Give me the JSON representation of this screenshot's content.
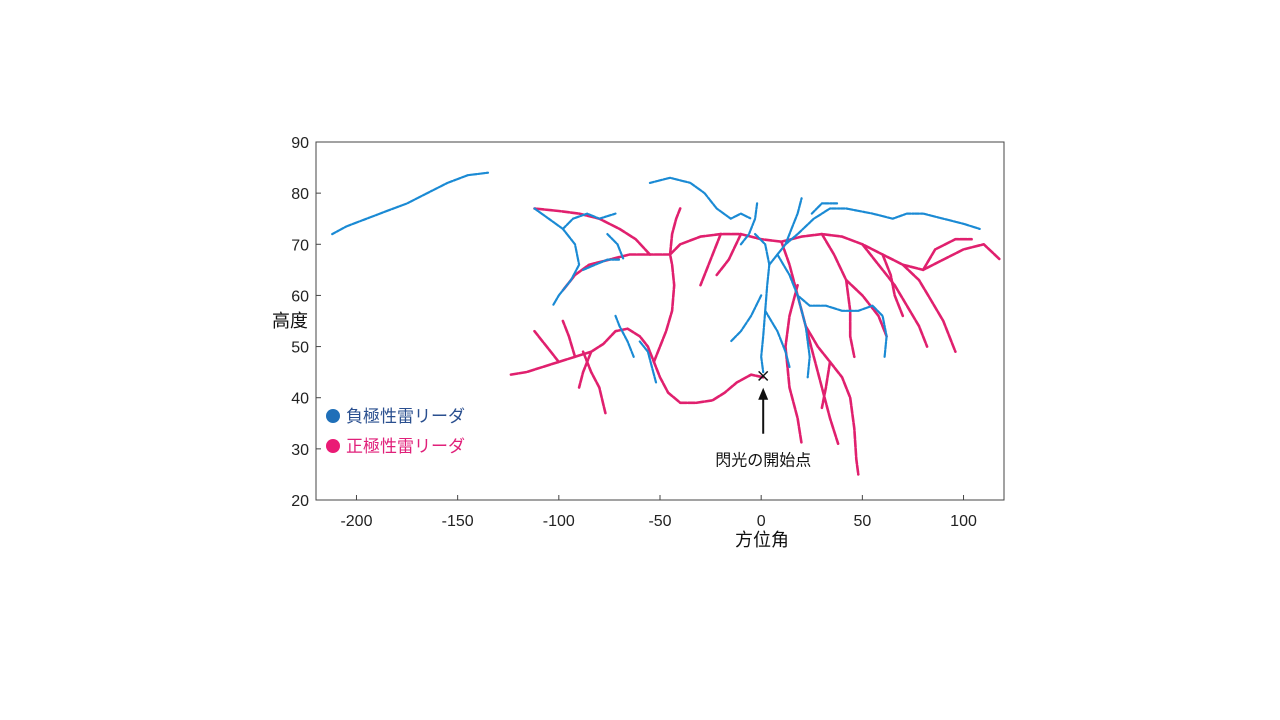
{
  "chart_data": {
    "type": "scatter",
    "xlabel": "方位角",
    "ylabel": "高度",
    "xlim": [
      -220,
      120
    ],
    "ylim": [
      20,
      90
    ],
    "xticks": [
      "-200",
      "-150",
      "-100",
      "-50",
      "0",
      "50",
      "100"
    ],
    "yticks": [
      "90",
      "80",
      "70",
      "60",
      "50",
      "40",
      "30",
      "20"
    ],
    "grid": false,
    "legend_position": "bottom-left",
    "series": [
      {
        "name": "負極性雷リーダ",
        "color": "#1a8ad4",
        "marker_color": "#1f6fb8",
        "label_color": "#2a4f8f",
        "paths": [
          [
            [
              -212,
              72
            ],
            [
              -205,
              73.5
            ],
            [
              -195,
              75
            ],
            [
              -185,
              76.5
            ],
            [
              -175,
              78
            ],
            [
              -165,
              80
            ],
            [
              -155,
              82
            ],
            [
              -145,
              83.5
            ],
            [
              -135,
              84
            ]
          ],
          [
            [
              -112,
              77
            ],
            [
              -105,
              75
            ],
            [
              -98,
              73
            ],
            [
              -92,
              70
            ],
            [
              -90,
              66
            ],
            [
              -94,
              63
            ],
            [
              -100,
              60
            ],
            [
              -103,
              58
            ]
          ],
          [
            [
              -98,
              73
            ],
            [
              -93,
              75
            ],
            [
              -86,
              76
            ],
            [
              -80,
              75
            ],
            [
              -72,
              76
            ]
          ],
          [
            [
              -88,
              65
            ],
            [
              -82,
              66
            ],
            [
              -76,
              67
            ],
            [
              -70,
              67
            ]
          ],
          [
            [
              -76,
              72
            ],
            [
              -71,
              70
            ],
            [
              -68,
              67
            ]
          ],
          [
            [
              -55,
              82
            ],
            [
              -45,
              83
            ],
            [
              -35,
              82
            ],
            [
              -28,
              80
            ],
            [
              -22,
              77
            ],
            [
              -15,
              75
            ],
            [
              -10,
              76
            ],
            [
              -5,
              75
            ]
          ],
          [
            [
              -10,
              70
            ],
            [
              -6,
              72
            ],
            [
              -3,
              75
            ],
            [
              -2,
              78
            ]
          ],
          [
            [
              -3,
              72
            ],
            [
              2,
              70
            ],
            [
              4,
              66
            ],
            [
              3,
              62
            ],
            [
              2,
              57
            ],
            [
              1,
              52
            ],
            [
              0,
              48
            ],
            [
              1,
              45
            ]
          ],
          [
            [
              4,
              66
            ],
            [
              8,
              68
            ],
            [
              12,
              70
            ],
            [
              15,
              73
            ],
            [
              18,
              76
            ],
            [
              20,
              79
            ]
          ],
          [
            [
              12,
              70
            ],
            [
              18,
              72
            ],
            [
              26,
              75
            ],
            [
              34,
              77
            ],
            [
              42,
              77
            ],
            [
              55,
              76
            ],
            [
              65,
              75
            ],
            [
              72,
              76
            ],
            [
              80,
              76
            ],
            [
              90,
              75
            ],
            [
              100,
              74
            ],
            [
              108,
              73
            ]
          ],
          [
            [
              8,
              68
            ],
            [
              14,
              64
            ],
            [
              18,
              60
            ],
            [
              24,
              58
            ],
            [
              32,
              58
            ],
            [
              40,
              57
            ],
            [
              48,
              57
            ],
            [
              55,
              58
            ],
            [
              60,
              56
            ],
            [
              62,
              52
            ],
            [
              61,
              48
            ]
          ],
          [
            [
              18,
              60
            ],
            [
              22,
              54
            ],
            [
              24,
              48
            ],
            [
              23,
              44
            ]
          ],
          [
            [
              0,
              60
            ],
            [
              -5,
              56
            ],
            [
              -10,
              53
            ],
            [
              -15,
              51
            ]
          ],
          [
            [
              2,
              57
            ],
            [
              8,
              53
            ],
            [
              12,
              49
            ],
            [
              14,
              46
            ]
          ],
          [
            [
              -60,
              51
            ],
            [
              -56,
              49
            ],
            [
              -54,
              46
            ],
            [
              -52,
              43
            ]
          ],
          [
            [
              -72,
              56
            ],
            [
              -70,
              54
            ],
            [
              -66,
              51
            ],
            [
              -63,
              48
            ]
          ],
          [
            [
              25,
              76
            ],
            [
              30,
              78
            ],
            [
              38,
              78
            ]
          ]
        ]
      },
      {
        "name": "正極性雷リーダ",
        "color": "#e0206e",
        "marker_color": "#ea1a75",
        "label_color": "#e0207a",
        "paths": [
          [
            [
              1,
              44
            ],
            [
              -5,
              44.5
            ],
            [
              -12,
              43
            ],
            [
              -18,
              41
            ],
            [
              -24,
              39.5
            ],
            [
              -32,
              39
            ],
            [
              -40,
              39
            ],
            [
              -46,
              41
            ],
            [
              -50,
              44
            ],
            [
              -53,
              47
            ],
            [
              -56,
              50
            ],
            [
              -60,
              52
            ],
            [
              -66,
              53.5
            ],
            [
              -72,
              53
            ],
            [
              -78,
              50.5
            ],
            [
              -84,
              49
            ],
            [
              -92,
              48
            ],
            [
              -100,
              47
            ],
            [
              -108,
              46
            ],
            [
              -116,
              45
            ],
            [
              -124,
              44.5
            ]
          ],
          [
            [
              -53,
              47
            ],
            [
              -47,
              53
            ],
            [
              -44,
              57
            ],
            [
              -43,
              62
            ],
            [
              -44,
              66
            ],
            [
              -45,
              68
            ],
            [
              -40,
              70
            ],
            [
              -30,
              71.5
            ],
            [
              -20,
              72
            ],
            [
              -10,
              72
            ],
            [
              0,
              71
            ],
            [
              10,
              70.5
            ],
            [
              20,
              71.5
            ],
            [
              30,
              72
            ],
            [
              40,
              71.5
            ],
            [
              50,
              70
            ],
            [
              60,
              68
            ],
            [
              70,
              66
            ],
            [
              80,
              65
            ],
            [
              90,
              67
            ],
            [
              100,
              69
            ],
            [
              110,
              70
            ],
            [
              118,
              67
            ]
          ],
          [
            [
              -45,
              68
            ],
            [
              -55,
              68
            ],
            [
              -65,
              68
            ],
            [
              -75,
              67
            ],
            [
              -85,
              66
            ],
            [
              -92,
              64
            ],
            [
              -98,
              61
            ]
          ],
          [
            [
              -45,
              68
            ],
            [
              -44,
              72
            ],
            [
              -42,
              75
            ],
            [
              -40,
              77
            ]
          ],
          [
            [
              -55,
              68
            ],
            [
              -62,
              71
            ],
            [
              -70,
              73
            ],
            [
              -80,
              75
            ],
            [
              -90,
              76
            ],
            [
              -100,
              76.5
            ],
            [
              -112,
              77
            ]
          ],
          [
            [
              -88,
              49
            ],
            [
              -84,
              45
            ],
            [
              -80,
              42
            ],
            [
              -77,
              37
            ]
          ],
          [
            [
              -92,
              48
            ],
            [
              -95,
              52
            ],
            [
              -98,
              55
            ]
          ],
          [
            [
              -100,
              47
            ],
            [
              -106,
              50
            ],
            [
              -112,
              53
            ]
          ],
          [
            [
              -84,
              49
            ],
            [
              -88,
              45
            ],
            [
              -90,
              42
            ]
          ],
          [
            [
              10,
              70.5
            ],
            [
              14,
              66
            ],
            [
              18,
              60
            ],
            [
              22,
              54
            ],
            [
              26,
              48
            ],
            [
              30,
              42
            ],
            [
              34,
              36
            ],
            [
              38,
              31
            ]
          ],
          [
            [
              22,
              54
            ],
            [
              28,
              50
            ],
            [
              34,
              47
            ],
            [
              40,
              44
            ],
            [
              44,
              40
            ],
            [
              46,
              34
            ],
            [
              47,
              28
            ],
            [
              48,
              25
            ]
          ],
          [
            [
              18,
              62
            ],
            [
              14,
              56
            ],
            [
              12,
              50
            ],
            [
              14,
              42
            ],
            [
              18,
              36
            ],
            [
              20,
              31
            ]
          ],
          [
            [
              34,
              47
            ],
            [
              32,
              42
            ],
            [
              30,
              38
            ]
          ],
          [
            [
              30,
              72
            ],
            [
              36,
              68
            ],
            [
              42,
              63
            ],
            [
              50,
              60
            ],
            [
              58,
              56
            ],
            [
              62,
              52
            ]
          ],
          [
            [
              50,
              70
            ],
            [
              58,
              66
            ],
            [
              66,
              62
            ],
            [
              72,
              58
            ],
            [
              78,
              54
            ],
            [
              82,
              50
            ]
          ],
          [
            [
              70,
              66
            ],
            [
              78,
              63
            ],
            [
              84,
              59
            ],
            [
              90,
              55
            ],
            [
              96,
              49
            ]
          ],
          [
            [
              60,
              68
            ],
            [
              64,
              64
            ],
            [
              66,
              60
            ],
            [
              70,
              56
            ]
          ],
          [
            [
              42,
              63
            ],
            [
              44,
              57
            ],
            [
              44,
              52
            ],
            [
              46,
              48
            ]
          ],
          [
            [
              -20,
              72
            ],
            [
              -26,
              66
            ],
            [
              -30,
              62
            ]
          ],
          [
            [
              -10,
              72
            ],
            [
              -16,
              67
            ],
            [
              -22,
              64
            ]
          ],
          [
            [
              80,
              65
            ],
            [
              86,
              69
            ],
            [
              96,
              71
            ],
            [
              104,
              71
            ]
          ]
        ]
      }
    ],
    "annotation": {
      "label": "閃光の開始点",
      "x": 1,
      "y": 44.3,
      "marker": "×"
    }
  }
}
